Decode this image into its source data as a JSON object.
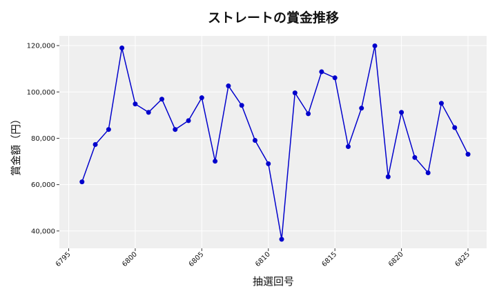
{
  "chart_data": {
    "type": "line",
    "title": "ストレートの賞金推移",
    "xlabel": "抽選回号",
    "ylabel": "賞金額（円）",
    "x_ticks": [
      6795,
      6800,
      6805,
      6810,
      6815,
      6820,
      6825
    ],
    "x_tick_labels": [
      "6795",
      "6800",
      "6805",
      "6810",
      "6815",
      "6820",
      "6825"
    ],
    "y_ticks": [
      40000,
      60000,
      80000,
      100000,
      120000
    ],
    "y_tick_labels": [
      "40,000",
      "60,000",
      "80,000",
      "100,000",
      "120,000"
    ],
    "xlim": [
      6794.3,
      6826.4
    ],
    "ylim": [
      32500,
      124200
    ],
    "grid": true,
    "series": [
      {
        "color": "#0000cc",
        "x": [
          6796,
          6797,
          6798,
          6799,
          6800,
          6801,
          6802,
          6803,
          6804,
          6805,
          6806,
          6807,
          6808,
          6809,
          6810,
          6811,
          6812,
          6813,
          6814,
          6815,
          6816,
          6817,
          6818,
          6819,
          6820,
          6821,
          6822,
          6823,
          6824,
          6825
        ],
        "y": [
          61200,
          77300,
          83800,
          119000,
          94800,
          91200,
          96900,
          83800,
          87600,
          97500,
          70100,
          102600,
          94200,
          79100,
          69000,
          36400,
          99600,
          90600,
          108700,
          106100,
          76400,
          93000,
          119900,
          63400,
          91200,
          71700,
          65100,
          95100,
          84600,
          73100
        ]
      }
    ]
  }
}
